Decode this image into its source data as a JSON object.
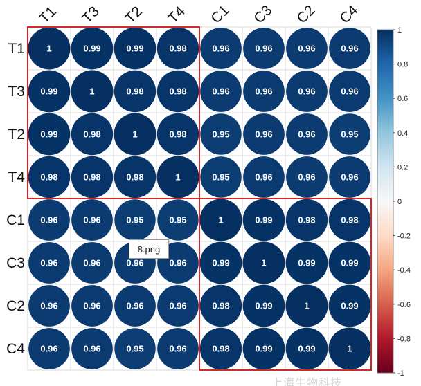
{
  "chart_data": {
    "type": "heatmap",
    "variables": [
      "T1",
      "T3",
      "T2",
      "T4",
      "C1",
      "C3",
      "C2",
      "C4"
    ],
    "matrix": [
      [
        1,
        0.99,
        0.99,
        0.98,
        0.96,
        0.96,
        0.96,
        0.96
      ],
      [
        0.99,
        1,
        0.98,
        0.98,
        0.96,
        0.96,
        0.96,
        0.96
      ],
      [
        0.99,
        0.98,
        1,
        0.98,
        0.95,
        0.96,
        0.96,
        0.95
      ],
      [
        0.98,
        0.98,
        0.98,
        1,
        0.95,
        0.96,
        0.96,
        0.96
      ],
      [
        0.96,
        0.96,
        0.95,
        0.95,
        1,
        0.99,
        0.98,
        0.98
      ],
      [
        0.96,
        0.96,
        0.96,
        0.96,
        0.99,
        1,
        0.99,
        0.99
      ],
      [
        0.96,
        0.96,
        0.96,
        0.96,
        0.98,
        0.99,
        1,
        0.99
      ],
      [
        0.96,
        0.96,
        0.95,
        0.96,
        0.98,
        0.99,
        0.99,
        1
      ]
    ],
    "color_scale": {
      "range": [
        -1,
        1
      ],
      "ticks": [
        "1",
        "0.8",
        "0.6",
        "0.4",
        "0.2",
        "0",
        "-0.2",
        "-0.4",
        "-0.6",
        "-0.8",
        "-1"
      ],
      "colors": [
        "#053061",
        "#2166AC",
        "#4393C3",
        "#92C5DE",
        "#D1E5F0",
        "#F7F7F7",
        "#FDDBC7",
        "#F4A582",
        "#D6604D",
        "#B2182B",
        "#67001F"
      ]
    },
    "cluster_boxes": [
      {
        "from": 0,
        "to": 3,
        "color": "#d62728"
      },
      {
        "from": 4,
        "to": 7,
        "color": "#d62728"
      }
    ],
    "grid": true
  },
  "tooltip": "8.png",
  "watermark": "上海生物科技"
}
